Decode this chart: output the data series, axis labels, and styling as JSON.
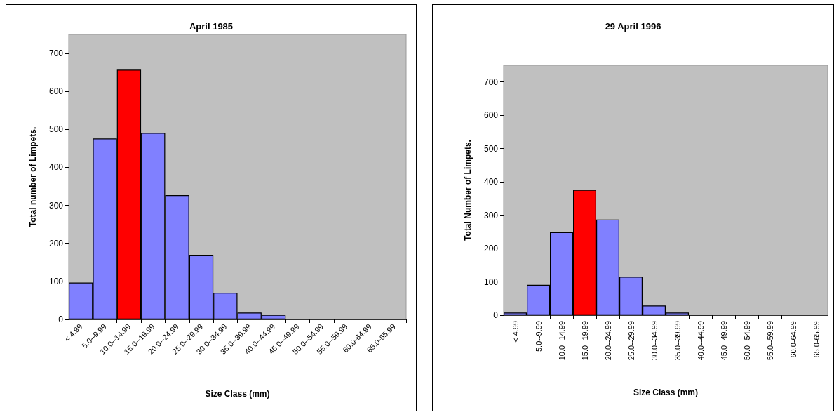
{
  "chart_data": [
    {
      "type": "bar",
      "title": "April 1985",
      "xlabel": "Size Class (mm)",
      "ylabel": "Total number of Limpets.",
      "categories": [
        "< 4.99",
        "5.0--9.99",
        "10.0--14.99",
        "15.0--19.99",
        "20.0--24.99",
        "25.0--29.99",
        "30.0--34.99",
        "35.0--39.99",
        "40.0--44.99",
        "45.0--49.99",
        "50.0--54.99",
        "55.0--59.99",
        "60.0-64.99",
        "65.0-65.99"
      ],
      "values": [
        97,
        476,
        657,
        491,
        327,
        170,
        70,
        18,
        12,
        0,
        0,
        0,
        0,
        0
      ],
      "colors": [
        "#8080ff",
        "#8080ff",
        "#ff0000",
        "#8080ff",
        "#8080ff",
        "#8080ff",
        "#8080ff",
        "#8080ff",
        "#8080ff",
        "#8080ff",
        "#8080ff",
        "#8080ff",
        "#8080ff",
        "#8080ff"
      ],
      "ylim": [
        0,
        750
      ],
      "yticks": [
        0,
        100,
        200,
        300,
        400,
        500,
        600,
        700
      ],
      "grid": false
    },
    {
      "type": "bar",
      "title": "29 April 1996",
      "xlabel": "Size Class (mm)",
      "ylabel": "Total Number of Limpets.",
      "categories": [
        "< 4.99",
        "5.0--9.99",
        "10.0--14.99",
        "15.0--19.99",
        "20.0--24.99",
        "25.0--29.99",
        "30.0--34.99",
        "35.0--39.99",
        "40.0--44.99",
        "45.0--49.99",
        "50.0--54.99",
        "55.0--59.99",
        "60.0-64.99",
        "65.0-65.99"
      ],
      "values": [
        8,
        91,
        249,
        376,
        287,
        115,
        29,
        8,
        2,
        0,
        0,
        0,
        0,
        0
      ],
      "colors": [
        "#8080ff",
        "#8080ff",
        "#8080ff",
        "#ff0000",
        "#8080ff",
        "#8080ff",
        "#8080ff",
        "#8080ff",
        "#000000",
        "#8080ff",
        "#8080ff",
        "#8080ff",
        "#8080ff",
        "#8080ff"
      ],
      "ylim": [
        0,
        750
      ],
      "yticks": [
        0,
        100,
        200,
        300,
        400,
        500,
        600,
        700
      ],
      "grid": false
    }
  ]
}
